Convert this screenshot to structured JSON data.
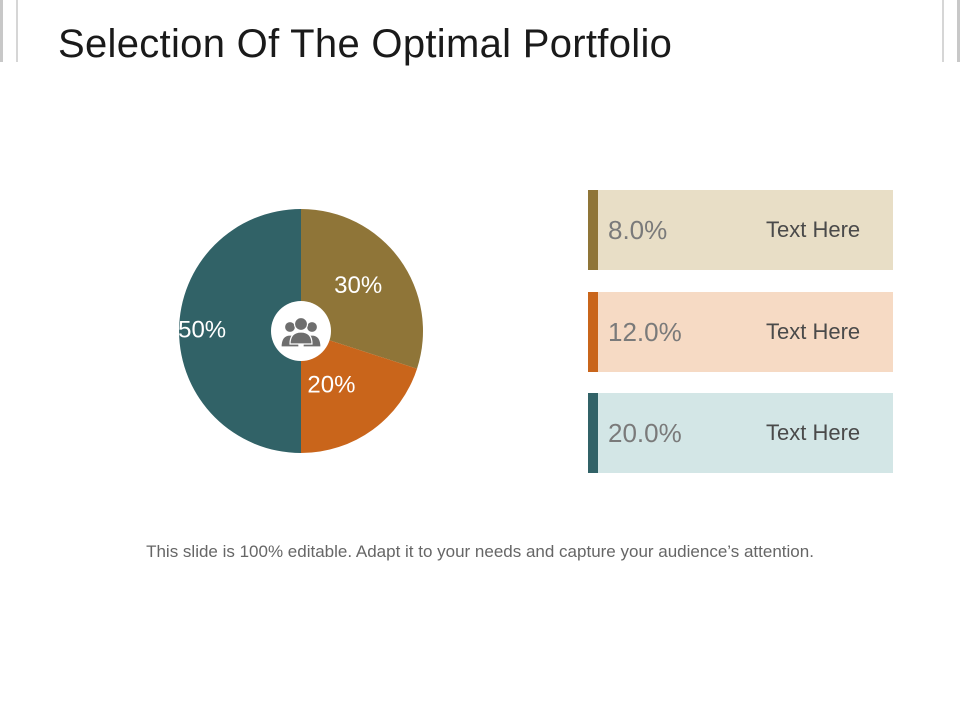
{
  "slide": {
    "title": "Selection Of The Optimal Portfolio",
    "footer": "This slide is 100% editable. Adapt it to your needs and capture your audience’s attention."
  },
  "chart_data": {
    "type": "pie",
    "title": "",
    "slices": [
      {
        "label": "30%",
        "value": 30,
        "color": "#8f7538"
      },
      {
        "label": "20%",
        "value": 20,
        "color": "#c9651b"
      },
      {
        "label": "50%",
        "value": 50,
        "color": "#316267"
      }
    ],
    "center_icon": "people-group-icon"
  },
  "panels": [
    {
      "value": "8.0%",
      "text": "Text Here",
      "accent": "#8f7538",
      "background": "#e8dec6"
    },
    {
      "value": "12.0%",
      "text": "Text Here",
      "accent": "#c9651b",
      "background": "#f6dac4"
    },
    {
      "value": "20.0%",
      "text": "Text Here",
      "accent": "#316267",
      "background": "#d3e6e6"
    }
  ]
}
